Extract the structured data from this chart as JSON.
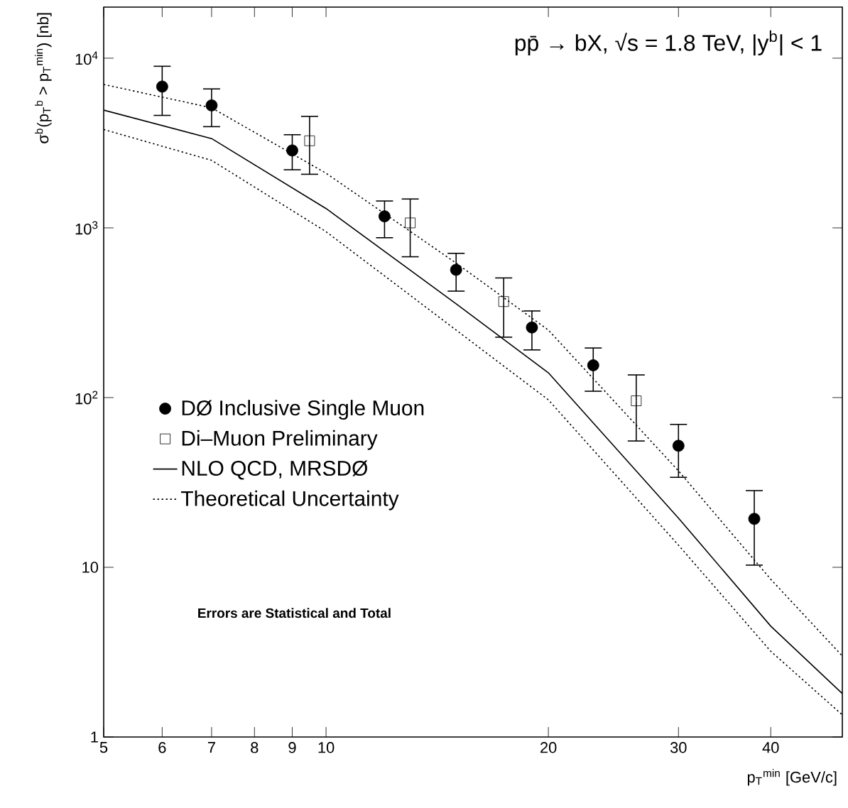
{
  "chart_data": {
    "type": "scatter",
    "title": "pp̄ → bX, √s = 1.8 TeV, |y$^{b}$| < 1",
    "xlabel": "p$_{T}$$^{min}$ [GeV/c]",
    "ylabel": "σ$^{b}$(p$_{T}$$^{b}$ > p$_{T}$$^{min}$) [nb]",
    "log": "xy",
    "xlim": [
      5,
      50
    ],
    "ylim": [
      1,
      20000
    ],
    "xticks": [
      5,
      6,
      7,
      8,
      9,
      10,
      20,
      30,
      40
    ],
    "yticks": [
      1,
      10,
      {
        "value": 100,
        "label": "10$^{2}$"
      },
      {
        "value": 1000,
        "label": "10$^{3}$"
      },
      {
        "value": 10000,
        "label": "10$^{4}$"
      }
    ],
    "legend": "left",
    "series": [
      {
        "name": "DØ Inclusive Single Muon",
        "type": "scatter",
        "marker": "circle",
        "color": "#000000",
        "x": [
          6,
          7,
          9,
          12,
          15,
          19,
          23,
          30,
          38
        ],
        "values": [
          6800,
          5270,
          2860,
          1170,
          566,
          259,
          155,
          52,
          19.3
        ],
        "errors": [
          [
            4600,
            8960
          ],
          [
            3950,
            6590
          ],
          [
            2200,
            3540
          ],
          [
            875,
            1440
          ],
          [
            424,
            708
          ],
          [
            191,
            324
          ],
          [
            109,
            196
          ],
          [
            33.9,
            69.5
          ],
          [
            10.3,
            28.3
          ]
        ]
      },
      {
        "name": "Di–Muon Preliminary",
        "type": "scatter",
        "marker": "square",
        "color": "#000000",
        "x": [
          9.5,
          13,
          17.4,
          26.3
        ],
        "values": [
          3260,
          1070,
          368,
          95.7
        ],
        "errors": [
          [
            2070,
            4540
          ],
          [
            676,
            1480
          ],
          [
            227,
            507
          ],
          [
            55.5,
            136
          ]
        ]
      },
      {
        "name": "NLO QCD, MRSDØ",
        "type": "line",
        "line_style": "solid",
        "color": "#000000",
        "x": [
          5,
          7,
          10,
          15,
          20,
          30,
          40,
          50
        ],
        "values": [
          4940,
          3360,
          1300,
          357,
          140,
          19.5,
          4.5,
          1.8
        ]
      },
      {
        "name": "Theoretical Uncertainty",
        "type": "line",
        "line_style": "dotted",
        "color": "#000000",
        "x": [
          5,
          7,
          10,
          15,
          20,
          30,
          40,
          50
        ],
        "values": [
          7000,
          5100,
          2100,
          620,
          250,
          37,
          8.5,
          3.0
        ]
      },
      {
        "type": "line",
        "line_style": "dotted",
        "color": "#000000",
        "x": [
          5,
          7,
          10,
          15,
          20,
          30,
          40,
          50
        ],
        "values": [
          3800,
          2500,
          950,
          250,
          97,
          13.5,
          3.2,
          1.35
        ]
      }
    ],
    "annotations": [
      "Errors are Statistical and Total"
    ]
  }
}
